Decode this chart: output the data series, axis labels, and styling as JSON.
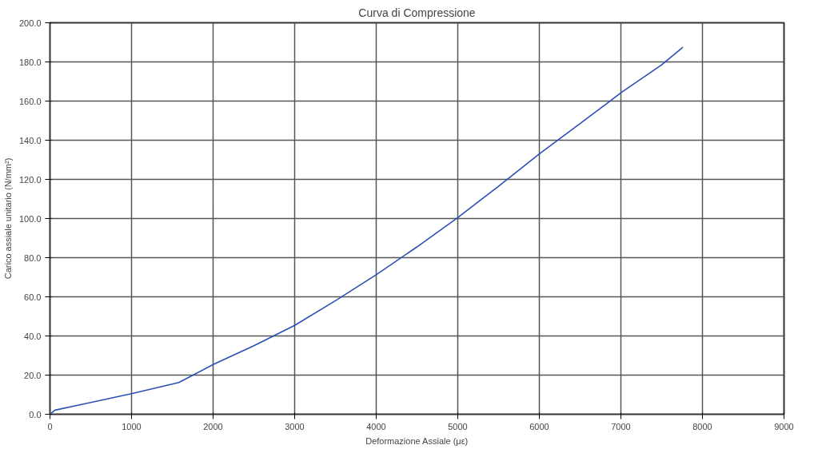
{
  "chart_data": {
    "type": "line",
    "title": "Curva di Compressione",
    "xlabel": "Deformazione Assiale (με)",
    "ylabel": "Carico assiale unitario (N/mm²)",
    "x": [
      0,
      60,
      500,
      1000,
      1580,
      2000,
      2500,
      3000,
      3500,
      4000,
      4500,
      5000,
      5500,
      6000,
      6500,
      7000,
      7500,
      7760
    ],
    "series": [
      {
        "color": "#2b4fb5",
        "values": [
          0,
          2.1,
          6,
          10.5,
          16.2,
          25.4,
          35,
          45.4,
          58,
          71.3,
          85.5,
          100.5,
          116.5,
          133,
          148.5,
          164.2,
          178.5,
          187.5
        ]
      }
    ],
    "xlim": [
      0,
      9000
    ],
    "ylim": [
      0,
      200
    ],
    "xticks": [
      0,
      1000,
      2000,
      3000,
      4000,
      5000,
      6000,
      7000,
      8000,
      9000
    ],
    "yticks": [
      {
        "value": 0,
        "label": "0.0"
      },
      {
        "value": 20,
        "label": "20.0"
      },
      {
        "value": 40,
        "label": "40.0"
      },
      {
        "value": 60,
        "label": "60.0"
      },
      {
        "value": 80,
        "label": "80.0"
      },
      {
        "value": 100,
        "label": "100.0"
      },
      {
        "value": 120,
        "label": "120.0"
      },
      {
        "value": 140,
        "label": "140.0"
      },
      {
        "value": 160,
        "label": "160.0"
      },
      {
        "value": 180,
        "label": "180.0"
      },
      {
        "value": 200,
        "label": "200.0"
      }
    ],
    "grid": true,
    "marker": "none",
    "line_style": "solid"
  }
}
